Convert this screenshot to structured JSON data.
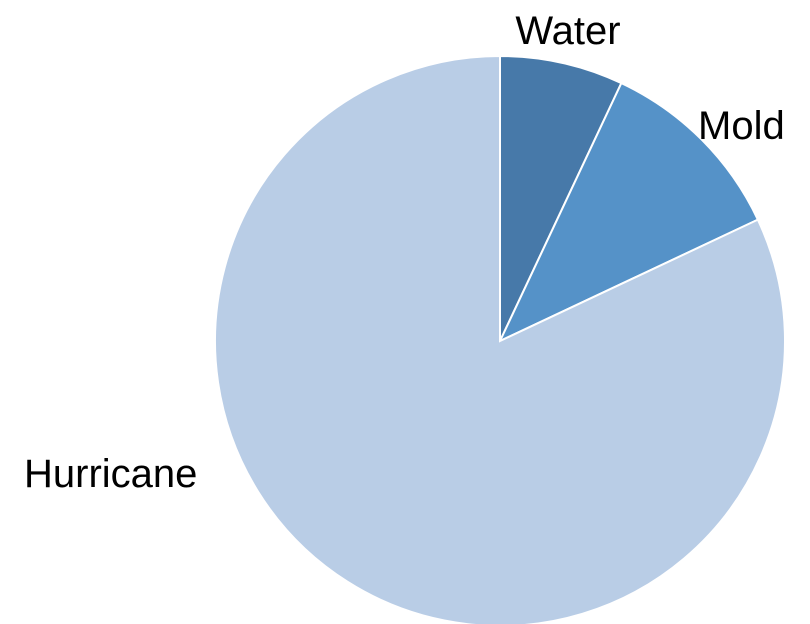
{
  "chart_data": {
    "type": "pie",
    "title": "",
    "start_angle_deg": 0,
    "direction": "clockwise",
    "legend": "none",
    "slices": [
      {
        "label": "Water",
        "value": 7,
        "color": "#4779A9"
      },
      {
        "label": "Mold",
        "value": 11,
        "color": "#5592C8"
      },
      {
        "label": "Hurricane",
        "value": 82,
        "color": "#B9CDE6"
      }
    ]
  }
}
